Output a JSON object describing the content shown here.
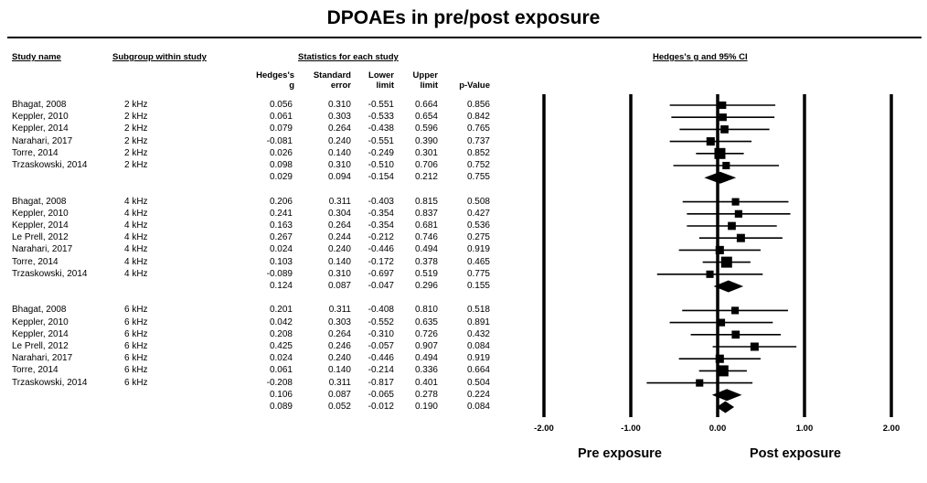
{
  "title": "DPOAEs in pre/post exposure",
  "headers": {
    "study_name": "Study name",
    "subgroup": "Subgroup within study",
    "statistics": "Statistics for each study",
    "ci": "Hedges's g and 95% CI"
  },
  "columns": {
    "g": [
      "Hedges's",
      "g"
    ],
    "se": [
      "Standard",
      "error"
    ],
    "lower": [
      "Lower",
      "limit"
    ],
    "upper": [
      "Upper",
      "limit"
    ],
    "p": [
      "p-Value"
    ]
  },
  "chart_data": {
    "type": "forest",
    "xlim": [
      -2.0,
      2.0
    ],
    "xticks": [
      "-2.00",
      "-1.00",
      "0.00",
      "1.00",
      "2.00"
    ],
    "left_label": "Pre exposure",
    "right_label": "Post exposure",
    "rows": [
      {
        "study": "Bhagat, 2008",
        "subgroup": "2 kHz",
        "g": "0.056",
        "se": "0.310",
        "lower": "-0.551",
        "upper": "0.664",
        "p": "0.856",
        "kind": "study",
        "weight": 0.31
      },
      {
        "study": "Keppler, 2010",
        "subgroup": "2 kHz",
        "g": "0.061",
        "se": "0.303",
        "lower": "-0.533",
        "upper": "0.654",
        "p": "0.842",
        "kind": "study",
        "weight": 0.32
      },
      {
        "study": "Keppler, 2014",
        "subgroup": "2 kHz",
        "g": "0.079",
        "se": "0.264",
        "lower": "-0.438",
        "upper": "0.596",
        "p": "0.765",
        "kind": "study",
        "weight": 0.37
      },
      {
        "study": "Narahari, 2017",
        "subgroup": "2 kHz",
        "g": "-0.081",
        "se": "0.240",
        "lower": "-0.551",
        "upper": "0.390",
        "p": "0.737",
        "kind": "study",
        "weight": 0.41
      },
      {
        "study": "Torre, 2014",
        "subgroup": "2 kHz",
        "g": "0.026",
        "se": "0.140",
        "lower": "-0.249",
        "upper": "0.301",
        "p": "0.852",
        "kind": "study",
        "weight": 0.7
      },
      {
        "study": "Trzaskowski, 2014",
        "subgroup": "2 kHz",
        "g": "0.098",
        "se": "0.310",
        "lower": "-0.510",
        "upper": "0.706",
        "p": "0.752",
        "kind": "study",
        "weight": 0.31
      },
      {
        "study": "",
        "subgroup": "",
        "g": "0.029",
        "se": "0.094",
        "lower": "-0.154",
        "upper": "0.212",
        "p": "0.755",
        "kind": "summary"
      },
      {
        "study": "",
        "subgroup": "",
        "kind": "gap"
      },
      {
        "study": "Bhagat, 2008",
        "subgroup": "4 kHz",
        "g": "0.206",
        "se": "0.311",
        "lower": "-0.403",
        "upper": "0.815",
        "p": "0.508",
        "kind": "study",
        "weight": 0.31
      },
      {
        "study": "Keppler, 2010",
        "subgroup": "4 kHz",
        "g": "0.241",
        "se": "0.304",
        "lower": "-0.354",
        "upper": "0.837",
        "p": "0.427",
        "kind": "study",
        "weight": 0.32
      },
      {
        "study": "Keppler, 2014",
        "subgroup": "4 kHz",
        "g": "0.163",
        "se": "0.264",
        "lower": "-0.354",
        "upper": "0.681",
        "p": "0.536",
        "kind": "study",
        "weight": 0.37
      },
      {
        "study": "Le Prell, 2012",
        "subgroup": "4 kHz",
        "g": "0.267",
        "se": "0.244",
        "lower": "-0.212",
        "upper": "0.746",
        "p": "0.275",
        "kind": "study",
        "weight": 0.4
      },
      {
        "study": "Narahari, 2017",
        "subgroup": "4 kHz",
        "g": "0.024",
        "se": "0.240",
        "lower": "-0.446",
        "upper": "0.494",
        "p": "0.919",
        "kind": "study",
        "weight": 0.41
      },
      {
        "study": "Torre, 2014",
        "subgroup": "4 kHz",
        "g": "0.103",
        "se": "0.140",
        "lower": "-0.172",
        "upper": "0.378",
        "p": "0.465",
        "kind": "study",
        "weight": 0.7
      },
      {
        "study": "Trzaskowski, 2014",
        "subgroup": "4 kHz",
        "g": "-0.089",
        "se": "0.310",
        "lower": "-0.697",
        "upper": "0.519",
        "p": "0.775",
        "kind": "study",
        "weight": 0.31
      },
      {
        "study": "",
        "subgroup": "",
        "g": "0.124",
        "se": "0.087",
        "lower": "-0.047",
        "upper": "0.296",
        "p": "0.155",
        "kind": "summary"
      },
      {
        "study": "",
        "subgroup": "",
        "kind": "gap"
      },
      {
        "study": "Bhagat, 2008",
        "subgroup": "6 kHz",
        "g": "0.201",
        "se": "0.311",
        "lower": "-0.408",
        "upper": "0.810",
        "p": "0.518",
        "kind": "study",
        "weight": 0.31
      },
      {
        "study": "Keppler, 2010",
        "subgroup": "6 kHz",
        "g": "0.042",
        "se": "0.303",
        "lower": "-0.552",
        "upper": "0.635",
        "p": "0.891",
        "kind": "study",
        "weight": 0.32
      },
      {
        "study": "Keppler, 2014",
        "subgroup": "6 kHz",
        "g": "0.208",
        "se": "0.264",
        "lower": "-0.310",
        "upper": "0.726",
        "p": "0.432",
        "kind": "study",
        "weight": 0.37
      },
      {
        "study": "Le Prell, 2012",
        "subgroup": "6 kHz",
        "g": "0.425",
        "se": "0.246",
        "lower": "-0.057",
        "upper": "0.907",
        "p": "0.084",
        "kind": "study",
        "weight": 0.4
      },
      {
        "study": "Narahari, 2017",
        "subgroup": "6 kHz",
        "g": "0.024",
        "se": "0.240",
        "lower": "-0.446",
        "upper": "0.494",
        "p": "0.919",
        "kind": "study",
        "weight": 0.41
      },
      {
        "study": "Torre, 2014",
        "subgroup": "6 kHz",
        "g": "0.061",
        "se": "0.140",
        "lower": "-0.214",
        "upper": "0.336",
        "p": "0.664",
        "kind": "study",
        "weight": 0.7
      },
      {
        "study": "Trzaskowski, 2014",
        "subgroup": "6 kHz",
        "g": "-0.208",
        "se": "0.311",
        "lower": "-0.817",
        "upper": "0.401",
        "p": "0.504",
        "kind": "study",
        "weight": 0.31
      },
      {
        "study": "",
        "subgroup": "",
        "g": "0.106",
        "se": "0.087",
        "lower": "-0.065",
        "upper": "0.278",
        "p": "0.224",
        "kind": "summary"
      },
      {
        "study": "",
        "subgroup": "",
        "g": "0.089",
        "se": "0.052",
        "lower": "-0.012",
        "upper": "0.190",
        "p": "0.084",
        "kind": "summary"
      }
    ]
  }
}
